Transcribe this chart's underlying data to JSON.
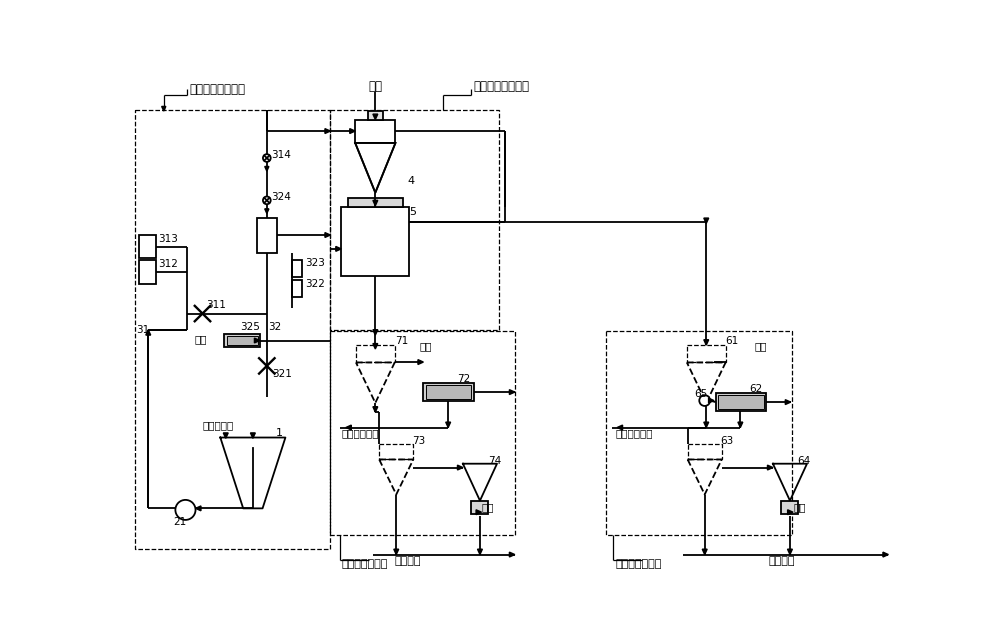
{
  "bg": "#ffffff",
  "lc": "#000000",
  "fw": 10.0,
  "fh": 6.43,
  "labels": {
    "sys1": "重介质入料子系统",
    "coal": "煟泥",
    "sys2": "重介质分选子系统",
    "sys3": "尾煎提取子系统",
    "sys4": "精煎提取子系统",
    "qs": "清水",
    "qsjzf": "清水介质粉",
    "hgjzt": "往合格介质桶",
    "wnj": "往浓缩机",
    "wfxj": "往浮选机",
    "wm": "尾煎",
    "jm": "精煎",
    "n314": "314",
    "n324": "324",
    "n313": "313",
    "n312": "312",
    "n311": "311",
    "n325": "325",
    "n32": "32",
    "n322": "322",
    "n323": "323",
    "n321": "321",
    "n31": "31",
    "n1": "1",
    "n21": "21",
    "n4": "4",
    "n5": "5",
    "n71": "71",
    "n72": "72",
    "n73": "73",
    "n74": "74",
    "n61": "61",
    "n62": "62",
    "n63": "63",
    "n64": "64",
    "n65": "65"
  }
}
